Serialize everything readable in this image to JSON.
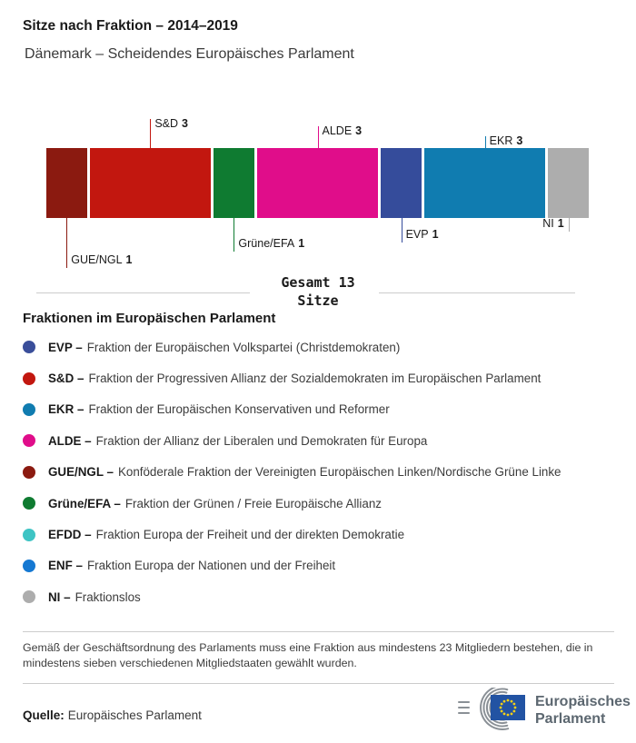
{
  "header": {
    "title": "Sitze nach Fraktion – 2014–2019",
    "subtitle": "Dänemark – Scheidendes Europäisches Parlament"
  },
  "chart_data": {
    "type": "bar",
    "variant": "stacked-horizontal-seat-bar",
    "title": "Sitze nach Fraktion – 2014–2019",
    "subtitle": "Dänemark – Scheidendes Europäisches Parlament",
    "total_seats": 13,
    "total_label_line1": "Gesamt 13",
    "total_label_line2": "Sitze",
    "segments": [
      {
        "group": "GUE/NGL",
        "seats": 1,
        "color": "#8B1A10",
        "callout_side": "below",
        "callout_len": 55
      },
      {
        "group": "S&D",
        "seats": 3,
        "color": "#C2170F",
        "callout_side": "above",
        "callout_len": 32
      },
      {
        "group": "Grüne/EFA",
        "seats": 1,
        "color": "#0F7B31",
        "callout_side": "below",
        "callout_len": 37
      },
      {
        "group": "ALDE",
        "seats": 3,
        "color": "#E00D8A",
        "callout_side": "above",
        "callout_len": 24
      },
      {
        "group": "EVP",
        "seats": 1,
        "color": "#354C9B",
        "callout_side": "below",
        "callout_len": 27
      },
      {
        "group": "EKR",
        "seats": 3,
        "color": "#107CB0",
        "callout_side": "above",
        "callout_len": 13
      },
      {
        "group": "NI",
        "seats": 1,
        "color": "#ADADAD",
        "callout_side": "below-left",
        "callout_len": 15
      }
    ]
  },
  "legend": {
    "heading": "Fraktionen im Europäischen Parlament",
    "items": [
      {
        "abbr": "EVP –",
        "desc": "Fraktion der Europäischen Volkspartei (Christdemokraten)",
        "color": "#3A4E9A"
      },
      {
        "abbr": "S&D –",
        "desc": "Fraktion der Progressiven Allianz der Sozialdemokraten im Europäischen Parlament",
        "color": "#C2170F"
      },
      {
        "abbr": "EKR –",
        "desc": "Fraktion der Europäischen Konservativen und Reformer",
        "color": "#107CB0"
      },
      {
        "abbr": "ALDE –",
        "desc": "Fraktion der Allianz der Liberalen und Demokraten für Europa",
        "color": "#E00D8A"
      },
      {
        "abbr": "GUE/NGL –",
        "desc": "Konföderale Fraktion der Vereinigten Europäischen Linken/Nordische Grüne Linke",
        "color": "#8B1A10"
      },
      {
        "abbr": "Grüne/EFA –",
        "desc": "Fraktion der Grünen / Freie Europäische Allianz",
        "color": "#0F7B31"
      },
      {
        "abbr": "EFDD –",
        "desc": "Fraktion Europa der Freiheit und der direkten Demokratie",
        "color": "#3EC4C4"
      },
      {
        "abbr": "ENF –",
        "desc": "Fraktion Europa der Nationen und der Freiheit",
        "color": "#1578D2"
      },
      {
        "abbr": "NI –",
        "desc": "Fraktionslos",
        "color": "#ADADAD"
      }
    ]
  },
  "footnote": "Gemäß der Geschäftsordnung des Parlaments muss eine Fraktion aus mindestens 23 Mitgliedern bestehen, die in mindestens sieben verschiedenen Mitgliedstaaten gewählt wurden.",
  "source": {
    "label": "Quelle:",
    "text": "Europäisches Parlament"
  },
  "logo": {
    "line1": "Europäisches",
    "line2": "Parlament"
  }
}
